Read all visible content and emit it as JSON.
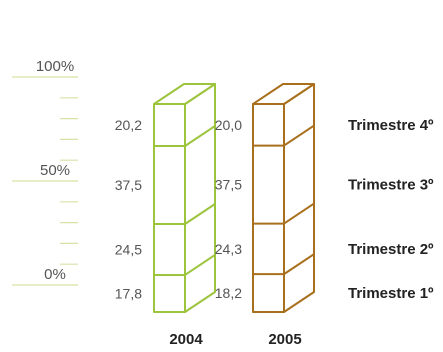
{
  "chart_data": {
    "type": "bar",
    "stacked": true,
    "percent": true,
    "categories": [
      "2004",
      "2005"
    ],
    "series": [
      {
        "name": "Trimestre 1º",
        "values": [
          17.8,
          18.2
        ]
      },
      {
        "name": "Trimestre 2º",
        "values": [
          24.5,
          24.3
        ]
      },
      {
        "name": "Trimestre 3º",
        "values": [
          37.5,
          37.5
        ]
      },
      {
        "name": "Trimestre 4º",
        "values": [
          20.2,
          20.0
        ]
      }
    ],
    "value_labels": [
      [
        "17,8",
        "24,5",
        "37,5",
        "20,2"
      ],
      [
        "18,2",
        "24,3",
        "37,5",
        "20,0"
      ]
    ],
    "y_axis": {
      "ticks": [
        {
          "value": 0,
          "label": "0%"
        },
        {
          "value": 50,
          "label": "50%"
        },
        {
          "value": 100,
          "label": "100%"
        }
      ],
      "minor_step": 10,
      "range": [
        0,
        100
      ]
    },
    "colors": {
      "2004": "#9cc43c",
      "2005": "#a86f1c",
      "axis": "#d8e3a6"
    },
    "legend_placement": "right"
  }
}
